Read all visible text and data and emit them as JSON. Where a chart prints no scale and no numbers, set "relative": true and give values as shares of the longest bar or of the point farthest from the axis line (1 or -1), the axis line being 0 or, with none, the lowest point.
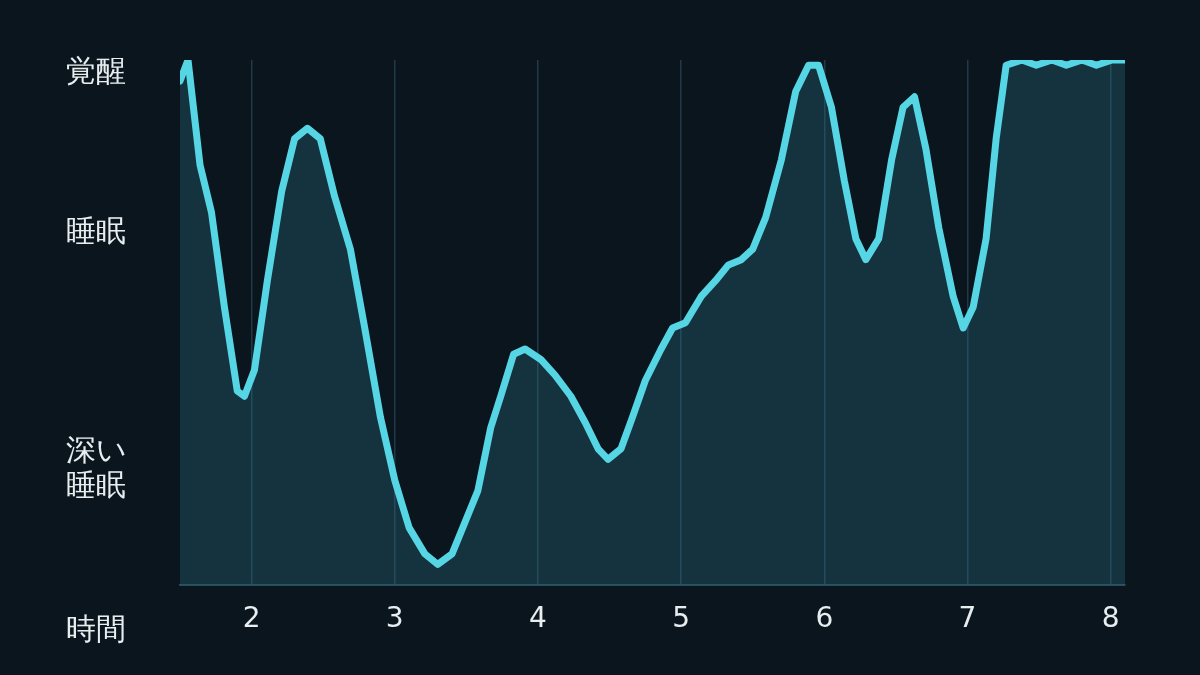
{
  "chart_data": {
    "type": "area",
    "x": [
      1.5,
      1.556,
      1.64,
      1.72,
      1.81,
      1.9,
      1.95,
      2.02,
      2.11,
      2.21,
      2.3,
      2.39,
      2.48,
      2.58,
      2.69,
      2.79,
      2.9,
      3.0,
      3.1,
      3.21,
      3.3,
      3.4,
      3.49,
      3.58,
      3.67,
      3.74,
      3.83,
      3.91,
      4.02,
      4.12,
      4.23,
      4.33,
      4.42,
      4.49,
      4.58,
      4.66,
      4.75,
      4.86,
      4.94,
      5.03,
      5.14,
      5.24,
      5.33,
      5.42,
      5.5,
      5.59,
      5.7,
      5.8,
      5.89,
      5.96,
      6.05,
      6.14,
      6.22,
      6.29,
      6.38,
      6.47,
      6.55,
      6.63,
      6.71,
      6.8,
      6.9,
      6.97,
      7.04,
      7.13,
      7.2,
      7.27,
      7.38,
      7.48,
      7.59,
      7.69,
      7.8,
      7.9,
      8.01,
      8.1
    ],
    "series": [
      {
        "color": "#56d6e4",
        "values": [
          0.96,
          1.0,
          0.8,
          0.71,
          0.53,
          0.37,
          0.36,
          0.41,
          0.58,
          0.75,
          0.85,
          0.87,
          0.85,
          0.74,
          0.64,
          0.49,
          0.32,
          0.2,
          0.11,
          0.06,
          0.04,
          0.06,
          0.12,
          0.18,
          0.3,
          0.36,
          0.44,
          0.45,
          0.43,
          0.4,
          0.36,
          0.31,
          0.26,
          0.24,
          0.26,
          0.32,
          0.39,
          0.45,
          0.49,
          0.5,
          0.55,
          0.58,
          0.61,
          0.62,
          0.64,
          0.7,
          0.81,
          0.94,
          0.99,
          0.99,
          0.91,
          0.77,
          0.66,
          0.62,
          0.66,
          0.81,
          0.91,
          0.93,
          0.83,
          0.68,
          0.55,
          0.49,
          0.53,
          0.66,
          0.85,
          0.99,
          1.0,
          0.99,
          1.0,
          0.99,
          1.0,
          0.99,
          1.0,
          1.0
        ]
      }
    ],
    "xlim": [
      1.5,
      8.1
    ],
    "xticks": [
      2,
      3,
      4,
      5,
      6,
      7,
      8
    ],
    "relative": true,
    "annotations": [
      "覚醒",
      "睡眠",
      "深い睡眠",
      "時間"
    ],
    "grid": "x",
    "marker": "none",
    "line_style": "solid",
    "legend": false
  }
}
